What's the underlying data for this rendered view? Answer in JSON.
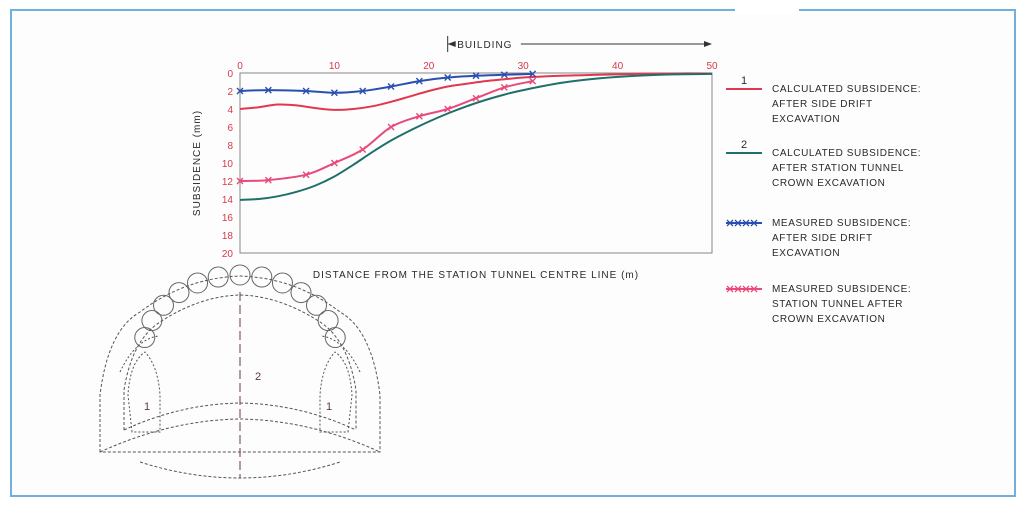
{
  "colors": {
    "frame": "#6fb0dc",
    "calc_side_drift": "#e0384f",
    "calc_crown": "#1f6f6a",
    "meas_side_drift": "#2a4fb0",
    "meas_crown": "#e84a7a",
    "tick": "#d43a4a"
  },
  "chart_data": {
    "type": "line",
    "xlabel": "DISTANCE FROM THE STATION TUNNEL CENTRE LINE (m)",
    "ylabel": "SUBSIDENCE (mm)",
    "xlim": [
      0,
      50
    ],
    "ylim": [
      0,
      20
    ],
    "y_inverted": true,
    "x_ticks": [
      "0",
      "10",
      "20",
      "30",
      "40",
      "50"
    ],
    "y_ticks": [
      "0",
      "2",
      "4",
      "6",
      "8",
      "10",
      "12",
      "14",
      "16",
      "18",
      "20"
    ],
    "grid": false,
    "legend_position": "right",
    "annotation": {
      "label": "BUILDING",
      "x_start": 22,
      "x_end": 50
    },
    "series": [
      {
        "id": "calc_side_drift",
        "legend_number": "1",
        "name": "CALCULATED SUBSIDENCE: AFTER SIDE DRIFT EXCAVATION",
        "legend_lines": [
          "CALCULATED SUBSIDENCE:",
          "AFTER SIDE DRIFT",
          "EXCAVATION"
        ],
        "marker": "none",
        "x": [
          0,
          2,
          4,
          6,
          8,
          10,
          12,
          14,
          16,
          18,
          20,
          22,
          24,
          26,
          28,
          30,
          34,
          38,
          42,
          46,
          50
        ],
        "y": [
          4.0,
          3.8,
          3.5,
          3.6,
          3.9,
          4.1,
          4.0,
          3.7,
          3.2,
          2.6,
          2.0,
          1.5,
          1.2,
          0.9,
          0.7,
          0.5,
          0.3,
          0.2,
          0.1,
          0.05,
          0.05
        ]
      },
      {
        "id": "calc_crown",
        "legend_number": "2",
        "name": "CALCULATED SUBSIDENCE: AFTER STATION TUNNEL CROWN EXCAVATION",
        "legend_lines": [
          "CALCULATED SUBSIDENCE:",
          "AFTER STATION TUNNEL",
          "CROWN EXCAVATION"
        ],
        "marker": "none",
        "x": [
          0,
          2,
          4,
          6,
          8,
          10,
          12,
          14,
          16,
          18,
          20,
          22,
          24,
          26,
          28,
          30,
          34,
          38,
          42,
          46,
          50
        ],
        "y": [
          14.1,
          14.0,
          13.7,
          13.2,
          12.5,
          11.5,
          10.2,
          8.8,
          7.5,
          6.4,
          5.4,
          4.5,
          3.7,
          3.0,
          2.4,
          1.9,
          1.1,
          0.6,
          0.3,
          0.15,
          0.1
        ]
      },
      {
        "id": "meas_side_drift",
        "legend_number": "",
        "name": "MEASURED SUBSIDENCE: AFTER SIDE DRIFT EXCAVATION",
        "legend_lines": [
          "MEASURED SUBSIDENCE:",
          "AFTER SIDE DRIFT",
          "EXCAVATION"
        ],
        "marker": "cross",
        "x": [
          0,
          3,
          7,
          10,
          13,
          16,
          19,
          22,
          25,
          28,
          31
        ],
        "y": [
          2.0,
          1.9,
          2.0,
          2.2,
          2.0,
          1.5,
          0.9,
          0.5,
          0.3,
          0.2,
          0.1
        ]
      },
      {
        "id": "meas_crown",
        "legend_number": "",
        "name": "MEASURED SUBSIDENCE: STATION TUNNEL AFTER CROWN EXCAVATION",
        "legend_lines": [
          "MEASURED SUBSIDENCE:",
          "STATION TUNNEL AFTER",
          "CROWN EXCAVATION"
        ],
        "marker": "cross",
        "x": [
          0,
          3,
          7,
          10,
          13,
          16,
          19,
          22,
          25,
          28,
          31
        ],
        "y": [
          12.0,
          11.9,
          11.3,
          10.0,
          8.5,
          6.0,
          4.8,
          4.0,
          2.8,
          1.6,
          0.9
        ]
      }
    ]
  },
  "tunnel": {
    "label_side_left": "1",
    "label_centre": "2",
    "label_side_right": "1"
  }
}
